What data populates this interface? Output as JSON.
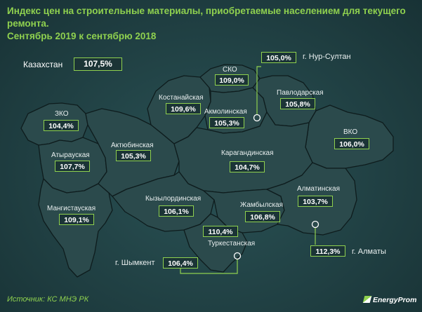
{
  "title": {
    "line1": "Индекс цен на строительные материалы, приобретаемые населением для текущего ремонта.",
    "line2": "Сентябрь 2019 к сентябрю 2018"
  },
  "country": {
    "label": "Казахстан",
    "value": "107,5%"
  },
  "regions": [
    {
      "label": "ЗКО",
      "value": "104,4%"
    },
    {
      "label": "Атырауская",
      "value": "107,7%"
    },
    {
      "label": "Мангистауская",
      "value": "109,1%"
    },
    {
      "label": "Актюбинская",
      "value": "105,3%"
    },
    {
      "label": "Костанайская",
      "value": "109,6%"
    },
    {
      "label": "СКО",
      "value": "109,0%"
    },
    {
      "label": "Акмолинская",
      "value": "105,3%"
    },
    {
      "label": "Павлодарская",
      "value": "105,8%"
    },
    {
      "label": "ВКО",
      "value": "106,0%"
    },
    {
      "label": "Карагандинская",
      "value": "104,7%"
    },
    {
      "label": "Кызылординская",
      "value": "106,1%"
    },
    {
      "label": "Жамбылская",
      "value": "106,8%"
    },
    {
      "label": "Алматинская",
      "value": "103,7%"
    },
    {
      "label": "Туркестанская",
      "value": "110,4%"
    }
  ],
  "cities": [
    {
      "label": "г. Нур-Султан",
      "value": "105,0%"
    },
    {
      "label": "г. Шымкент",
      "value": "106,4%"
    },
    {
      "label": "г. Алматы",
      "value": "112,3%"
    }
  ],
  "source": "Источник: КС МНЭ РК",
  "logo": "EnergyProm",
  "colors": {
    "accent": "#8fd14f",
    "region_fill": "#2b4a4c",
    "background": "#1f3d40"
  }
}
